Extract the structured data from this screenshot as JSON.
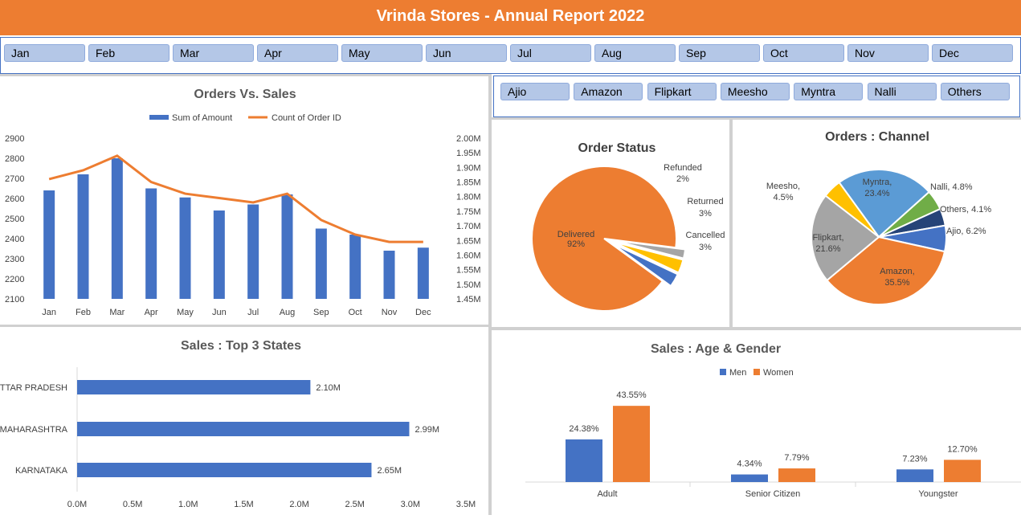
{
  "header": {
    "title": "Vrinda Stores - Annual Report 2022"
  },
  "month_slicer": [
    "Jan",
    "Feb",
    "Mar",
    "Apr",
    "May",
    "Jun",
    "Jul",
    "Aug",
    "Sep",
    "Oct",
    "Nov",
    "Dec"
  ],
  "channel_slicer": [
    "Ajio",
    "Amazon",
    "Flipkart",
    "Meesho",
    "Myntra",
    "Nalli",
    "Others"
  ],
  "colors": {
    "blue": "#4472c4",
    "orange": "#ed7d31",
    "gray": "#a5a5a5",
    "yellow": "#ffc000",
    "lightblue": "#5b9bd5",
    "green": "#70ad47",
    "navy": "#264478"
  },
  "chart_data": [
    {
      "type": "bar",
      "title": "Orders Vs. Sales",
      "categories": [
        "Jan",
        "Feb",
        "Mar",
        "Apr",
        "May",
        "Jun",
        "Jul",
        "Aug",
        "Sep",
        "Oct",
        "Nov",
        "Dec"
      ],
      "series": [
        {
          "name": "Sum of Amount",
          "type": "bar",
          "axis": "left",
          "values": [
            2640,
            2720,
            2800,
            2650,
            2605,
            2540,
            2570,
            2620,
            2450,
            2420,
            2340,
            2355
          ]
        },
        {
          "name": "Count of Order ID",
          "type": "line",
          "axis": "right",
          "values": [
            1.86,
            1.89,
            1.94,
            1.85,
            1.81,
            1.795,
            1.78,
            1.81,
            1.72,
            1.67,
            1.645,
            1.645
          ]
        }
      ],
      "y_left": {
        "min": 2100,
        "max": 2900,
        "ticks": [
          "2100",
          "2200",
          "2300",
          "2400",
          "2500",
          "2600",
          "2700",
          "2800",
          "2900"
        ]
      },
      "y_right": {
        "min": 1.45,
        "max": 2.0,
        "ticks": [
          "1.45M",
          "1.50M",
          "1.55M",
          "1.60M",
          "1.65M",
          "1.70M",
          "1.75M",
          "1.80M",
          "1.85M",
          "1.90M",
          "1.95M",
          "2.00M"
        ]
      },
      "legend": "top"
    },
    {
      "type": "pie",
      "title": "Order Status",
      "slices": [
        {
          "name": "Delivered",
          "value": 92,
          "label": "92%"
        },
        {
          "name": "Refunded",
          "value": 2,
          "label": "2%"
        },
        {
          "name": "Returned",
          "value": 3,
          "label": "3%"
        },
        {
          "name": "Cancelled",
          "value": 3,
          "label": "3%"
        }
      ]
    },
    {
      "type": "pie",
      "title": "Orders : Channel",
      "slices": [
        {
          "name": "Myntra",
          "value": 23.4,
          "label": "Myntra,",
          "pct": "23.4%"
        },
        {
          "name": "Nalli",
          "value": 4.8,
          "label": "Nalli, 4.8%"
        },
        {
          "name": "Others",
          "value": 4.1,
          "label": "Others, 4.1%"
        },
        {
          "name": "Ajio",
          "value": 6.2,
          "label": "Ajio, 6.2%"
        },
        {
          "name": "Amazon",
          "value": 35.5,
          "label": "Amazon,",
          "pct": "35.5%"
        },
        {
          "name": "Flipkart",
          "value": 21.6,
          "label": "Flipkart,",
          "pct": "21.6%"
        },
        {
          "name": "Meesho",
          "value": 4.5,
          "label": "Meesho,",
          "pct": "4.5%"
        }
      ]
    },
    {
      "type": "bar",
      "orientation": "horizontal",
      "title": "Sales : Top 3 States",
      "categories": [
        "UTTAR PRADESH",
        "MAHARASHTRA",
        "KARNATAKA"
      ],
      "values": [
        2.1,
        2.99,
        2.65
      ],
      "value_labels": [
        "2.10M",
        "2.99M",
        "2.65M"
      ],
      "xlim": [
        0,
        3.5
      ],
      "x_ticks": [
        "0.0M",
        "0.5M",
        "1.0M",
        "1.5M",
        "2.0M",
        "2.5M",
        "3.0M",
        "3.5M"
      ]
    },
    {
      "type": "bar",
      "title": "Sales : Age & Gender",
      "categories": [
        "Adult",
        "Senior Citizen",
        "Youngster"
      ],
      "series": [
        {
          "name": "Men",
          "values": [
            24.38,
            4.34,
            7.23
          ],
          "labels": [
            "24.38%",
            "4.34%",
            "7.23%"
          ]
        },
        {
          "name": "Women",
          "values": [
            43.55,
            7.79,
            12.7
          ],
          "labels": [
            "43.55%",
            "7.79%",
            "12.70%"
          ]
        }
      ],
      "legend": "top"
    }
  ]
}
